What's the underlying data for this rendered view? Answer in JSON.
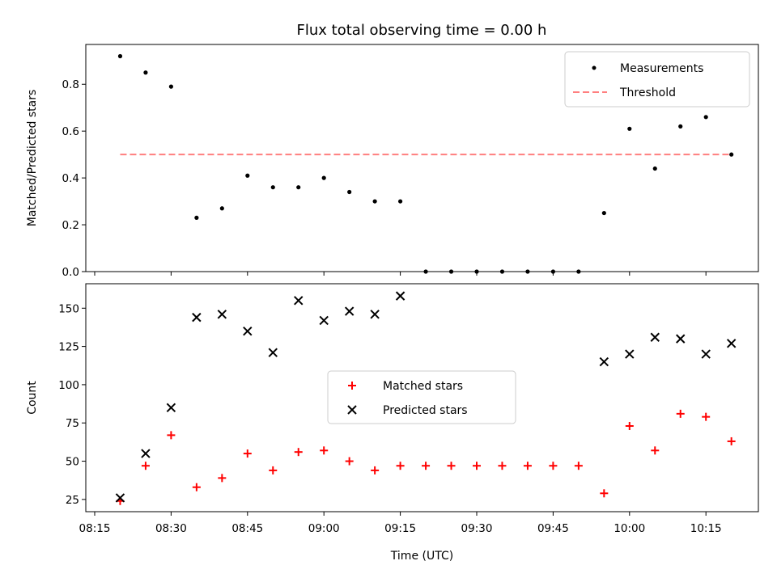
{
  "chart_data": [
    {
      "type": "scatter",
      "title": "Flux total observing time = 0.00 h",
      "xlabel": "",
      "ylabel": "Matched/Predicted stars",
      "ylim": [
        0,
        0.97
      ],
      "yticks": [
        0.0,
        0.2,
        0.4,
        0.6,
        0.8
      ],
      "ytick_labels": [
        "0.0",
        "0.2",
        "0.4",
        "0.6",
        "0.8"
      ],
      "legend_position": "upper right",
      "x": [
        "08:20",
        "08:25",
        "08:30",
        "08:35",
        "08:40",
        "08:45",
        "08:50",
        "08:55",
        "09:00",
        "09:05",
        "09:10",
        "09:15",
        "09:20",
        "09:25",
        "09:30",
        "09:35",
        "09:40",
        "09:45",
        "09:50",
        "09:55",
        "10:00",
        "10:05",
        "10:10",
        "10:15",
        "10:20"
      ],
      "series": [
        {
          "name": "Measurements",
          "marker": "dot",
          "color": "#000000",
          "values": [
            0.92,
            0.85,
            0.79,
            0.23,
            0.27,
            0.41,
            0.36,
            0.36,
            0.4,
            0.34,
            0.3,
            0.3,
            0.0,
            0.0,
            0.0,
            0.0,
            0.0,
            0.0,
            0.0,
            0.25,
            0.61,
            0.44,
            0.62,
            0.66,
            0.5
          ]
        },
        {
          "name": "Threshold",
          "style": "dashed",
          "color": "#ff7f7f",
          "x_range": [
            "08:20",
            "10:20"
          ],
          "value": 0.5
        }
      ]
    },
    {
      "type": "scatter",
      "title": "",
      "xlabel": "Time (UTC)",
      "ylabel": "Count",
      "ylim": [
        17,
        166
      ],
      "yticks": [
        25,
        50,
        75,
        100,
        125,
        150
      ],
      "ytick_labels": [
        "25",
        "50",
        "75",
        "100",
        "125",
        "150"
      ],
      "xticks": [
        "08:15",
        "08:30",
        "08:45",
        "09:00",
        "09:15",
        "09:30",
        "09:45",
        "10:00",
        "10:15"
      ],
      "legend_position": "center",
      "x": [
        "08:20",
        "08:25",
        "08:30",
        "08:35",
        "08:40",
        "08:45",
        "08:50",
        "08:55",
        "09:00",
        "09:05",
        "09:10",
        "09:15",
        "09:20",
        "09:25",
        "09:30",
        "09:35",
        "09:40",
        "09:45",
        "09:50",
        "09:55",
        "10:00",
        "10:05",
        "10:10",
        "10:15",
        "10:20"
      ],
      "series": [
        {
          "name": "Matched stars",
          "marker": "plus",
          "color": "#ff0000",
          "values": [
            24,
            47,
            67,
            33,
            39,
            55,
            44,
            56,
            57,
            50,
            44,
            47,
            47,
            47,
            47,
            47,
            47,
            47,
            47,
            29,
            73,
            57,
            81,
            79,
            63
          ]
        },
        {
          "name": "Predicted stars",
          "marker": "x",
          "color": "#000000",
          "values": [
            26,
            55,
            85,
            144,
            146,
            135,
            121,
            155,
            142,
            148,
            146,
            158,
            null,
            null,
            null,
            null,
            null,
            null,
            null,
            115,
            120,
            131,
            130,
            120,
            127
          ]
        }
      ]
    }
  ]
}
